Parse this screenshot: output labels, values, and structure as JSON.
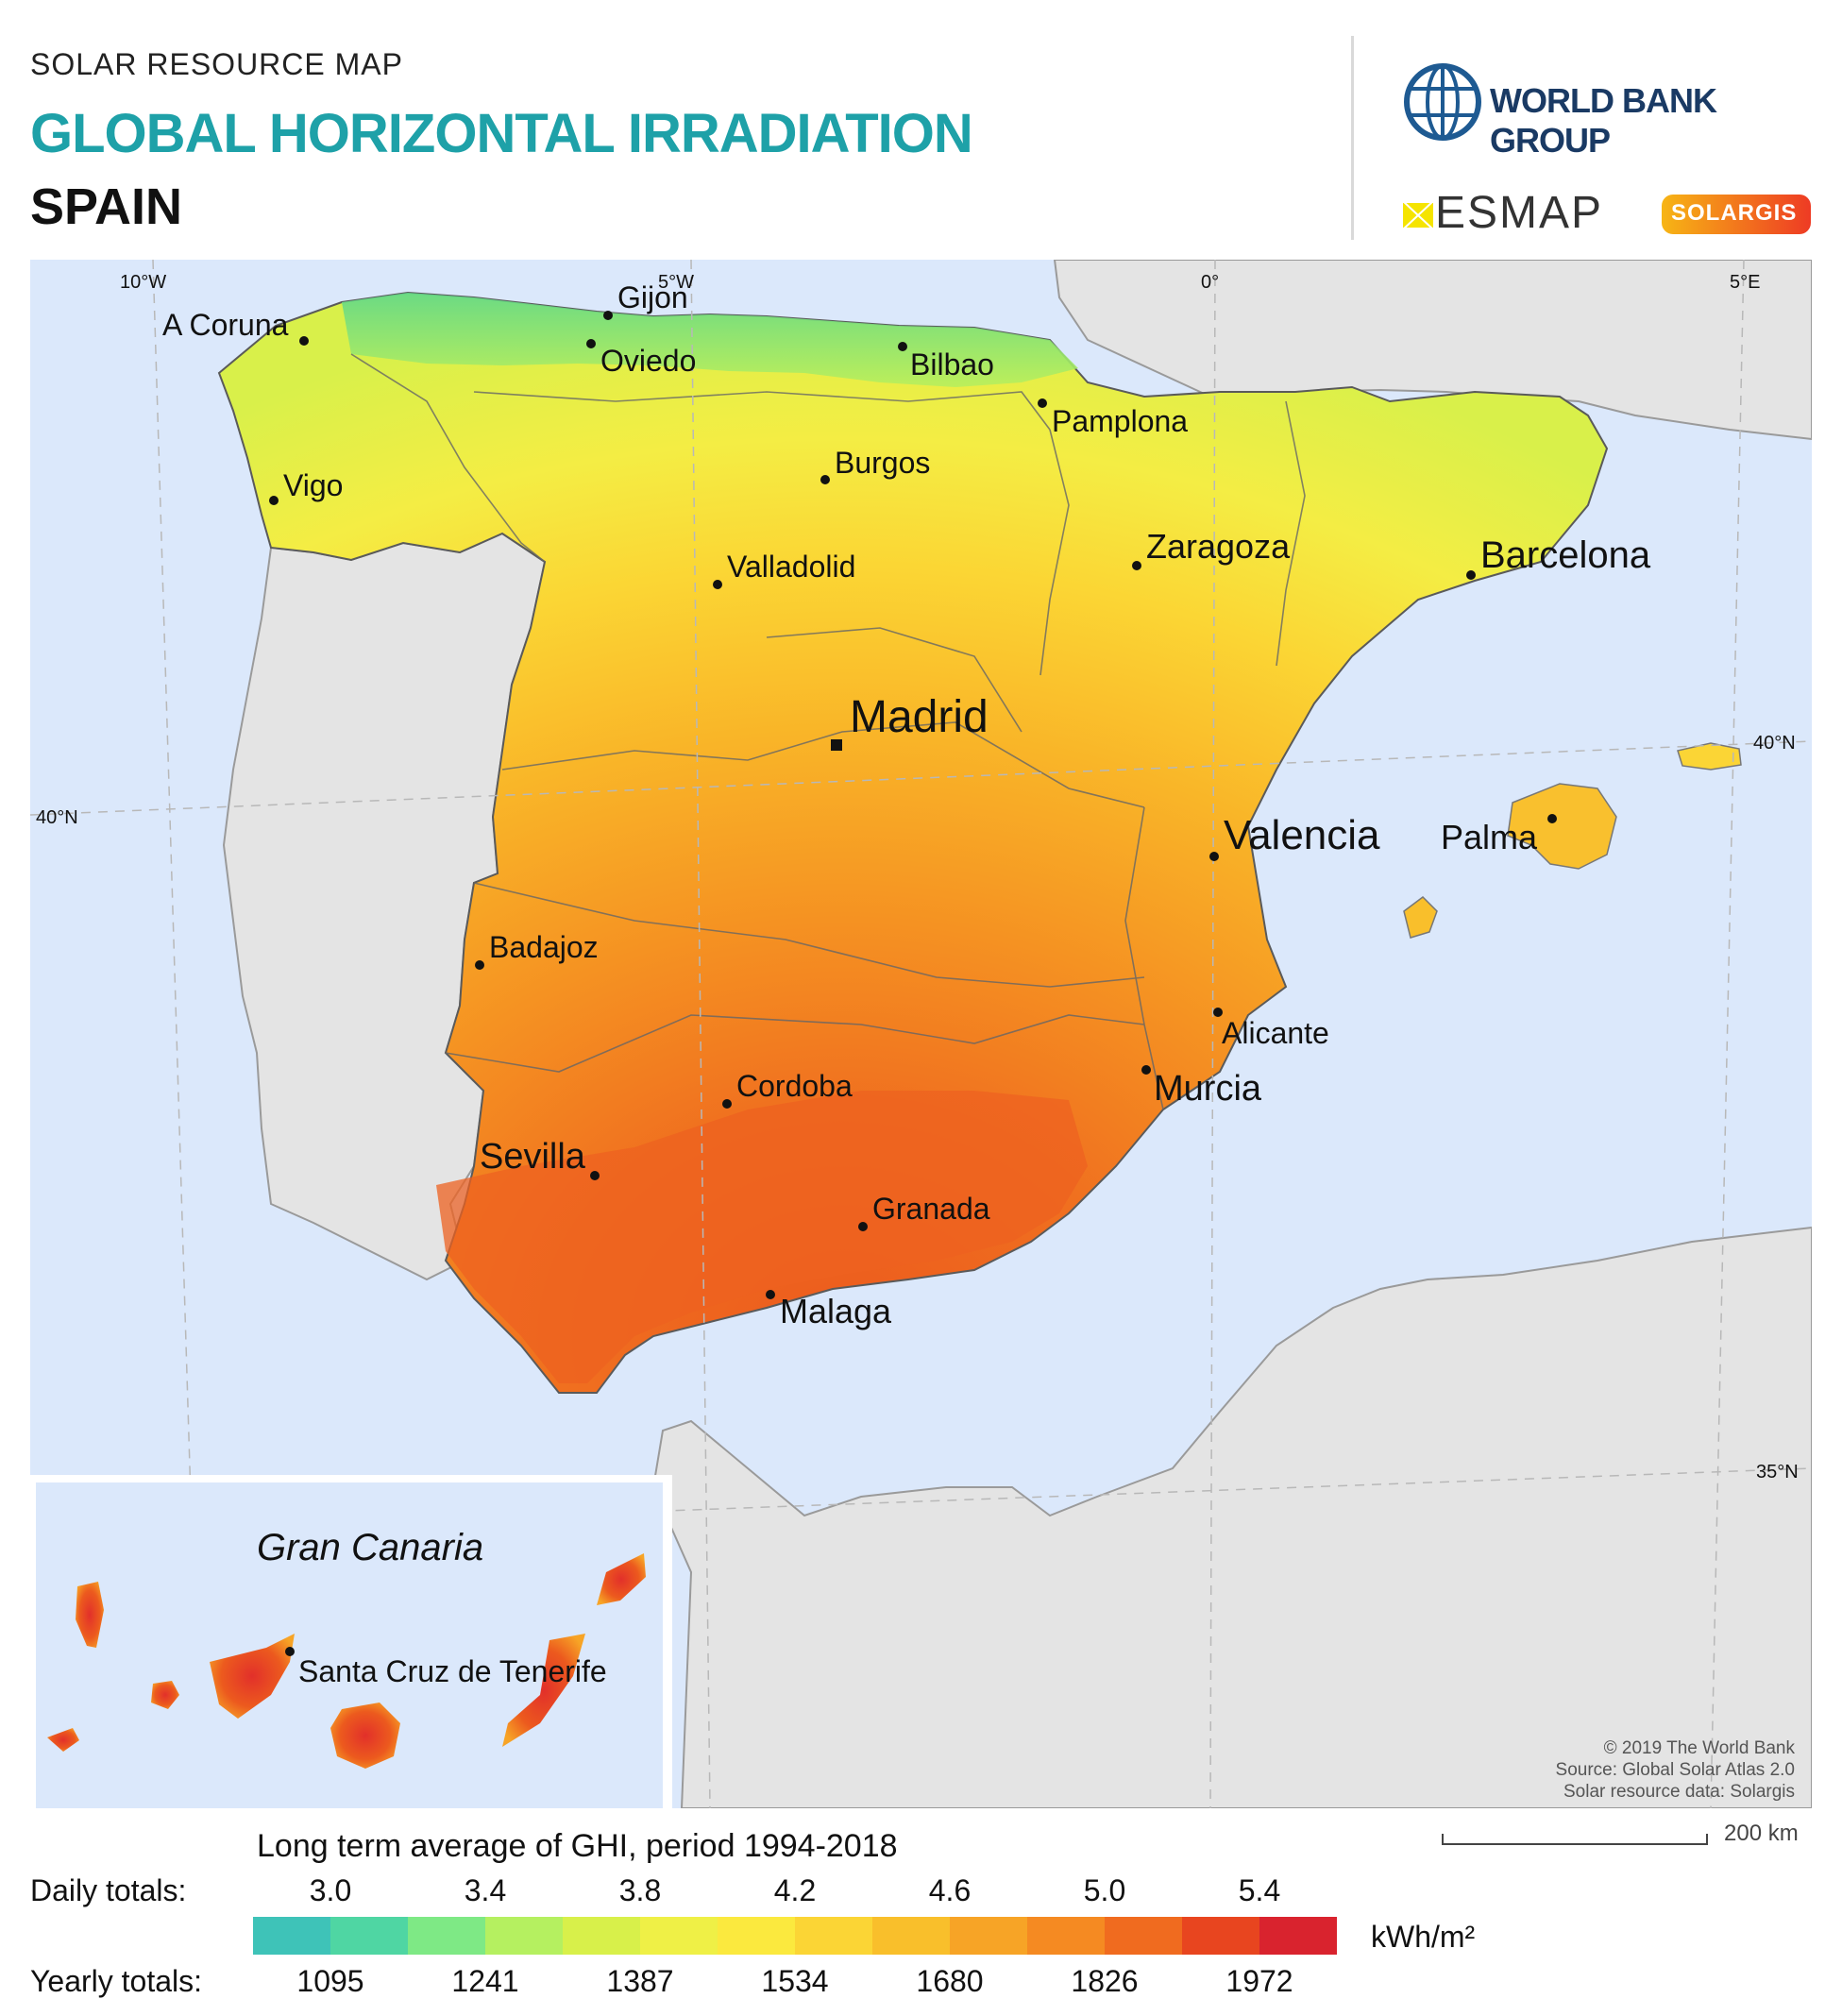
{
  "header": {
    "kicker": "SOLAR RESOURCE MAP",
    "title": "GLOBAL HORIZONTAL IRRADIATION",
    "country": "SPAIN"
  },
  "logos": {
    "world_bank": "WORLD BANK GROUP",
    "esmap": "ESMAP",
    "solargis": "SOLARGIS"
  },
  "graticule": {
    "lon_10w": "10°W",
    "lon_5w": "5°W",
    "lon_0": "0°",
    "lon_5e": "5°E",
    "lat_40n_left": "40°N",
    "lat_40n_right": "40°N",
    "lat_35n": "35°N"
  },
  "cities": {
    "a_coruna": "A Coruna",
    "gijon": "Gijon",
    "oviedo": "Oviedo",
    "bilbao": "Bilbao",
    "pamplona": "Pamplona",
    "burgos": "Burgos",
    "vigo": "Vigo",
    "zaragoza": "Zaragoza",
    "barcelona": "Barcelona",
    "valladolid": "Valladolid",
    "madrid": "Madrid",
    "valencia": "Valencia",
    "palma": "Palma",
    "badajoz": "Badajoz",
    "alicante": "Alicante",
    "murcia": "Murcia",
    "cordoba": "Cordoba",
    "sevilla": "Sevilla",
    "granada": "Granada",
    "malaga": "Malaga",
    "santa_cruz": "Santa Cruz de Tenerife"
  },
  "inset": {
    "title": "Gran Canaria"
  },
  "credits": {
    "line1": "© 2019 The World Bank",
    "line2": "Source: Global Solar Atlas 2.0",
    "line3": "Solar resource data: Solargis"
  },
  "scale_bar": "200 km",
  "legend": {
    "caption": "Long term average of GHI, period 1994-2018",
    "daily_label": "Daily totals:",
    "yearly_label": "Yearly totals:",
    "unit": "kWh/m²",
    "daily_ticks": [
      "3.0",
      "3.4",
      "3.8",
      "4.2",
      "4.6",
      "5.0",
      "5.4"
    ],
    "yearly_ticks": [
      "1095",
      "1241",
      "1387",
      "1534",
      "1680",
      "1826",
      "1972"
    ],
    "colors": [
      "#3ec3b8",
      "#4fd6a3",
      "#7ee985",
      "#b5f060",
      "#d8f04a",
      "#eff046",
      "#fbe93e",
      "#fbd535",
      "#f9bf2b",
      "#f7a426",
      "#f58a22",
      "#f06b1f",
      "#e8451f",
      "#d9232e"
    ]
  }
}
